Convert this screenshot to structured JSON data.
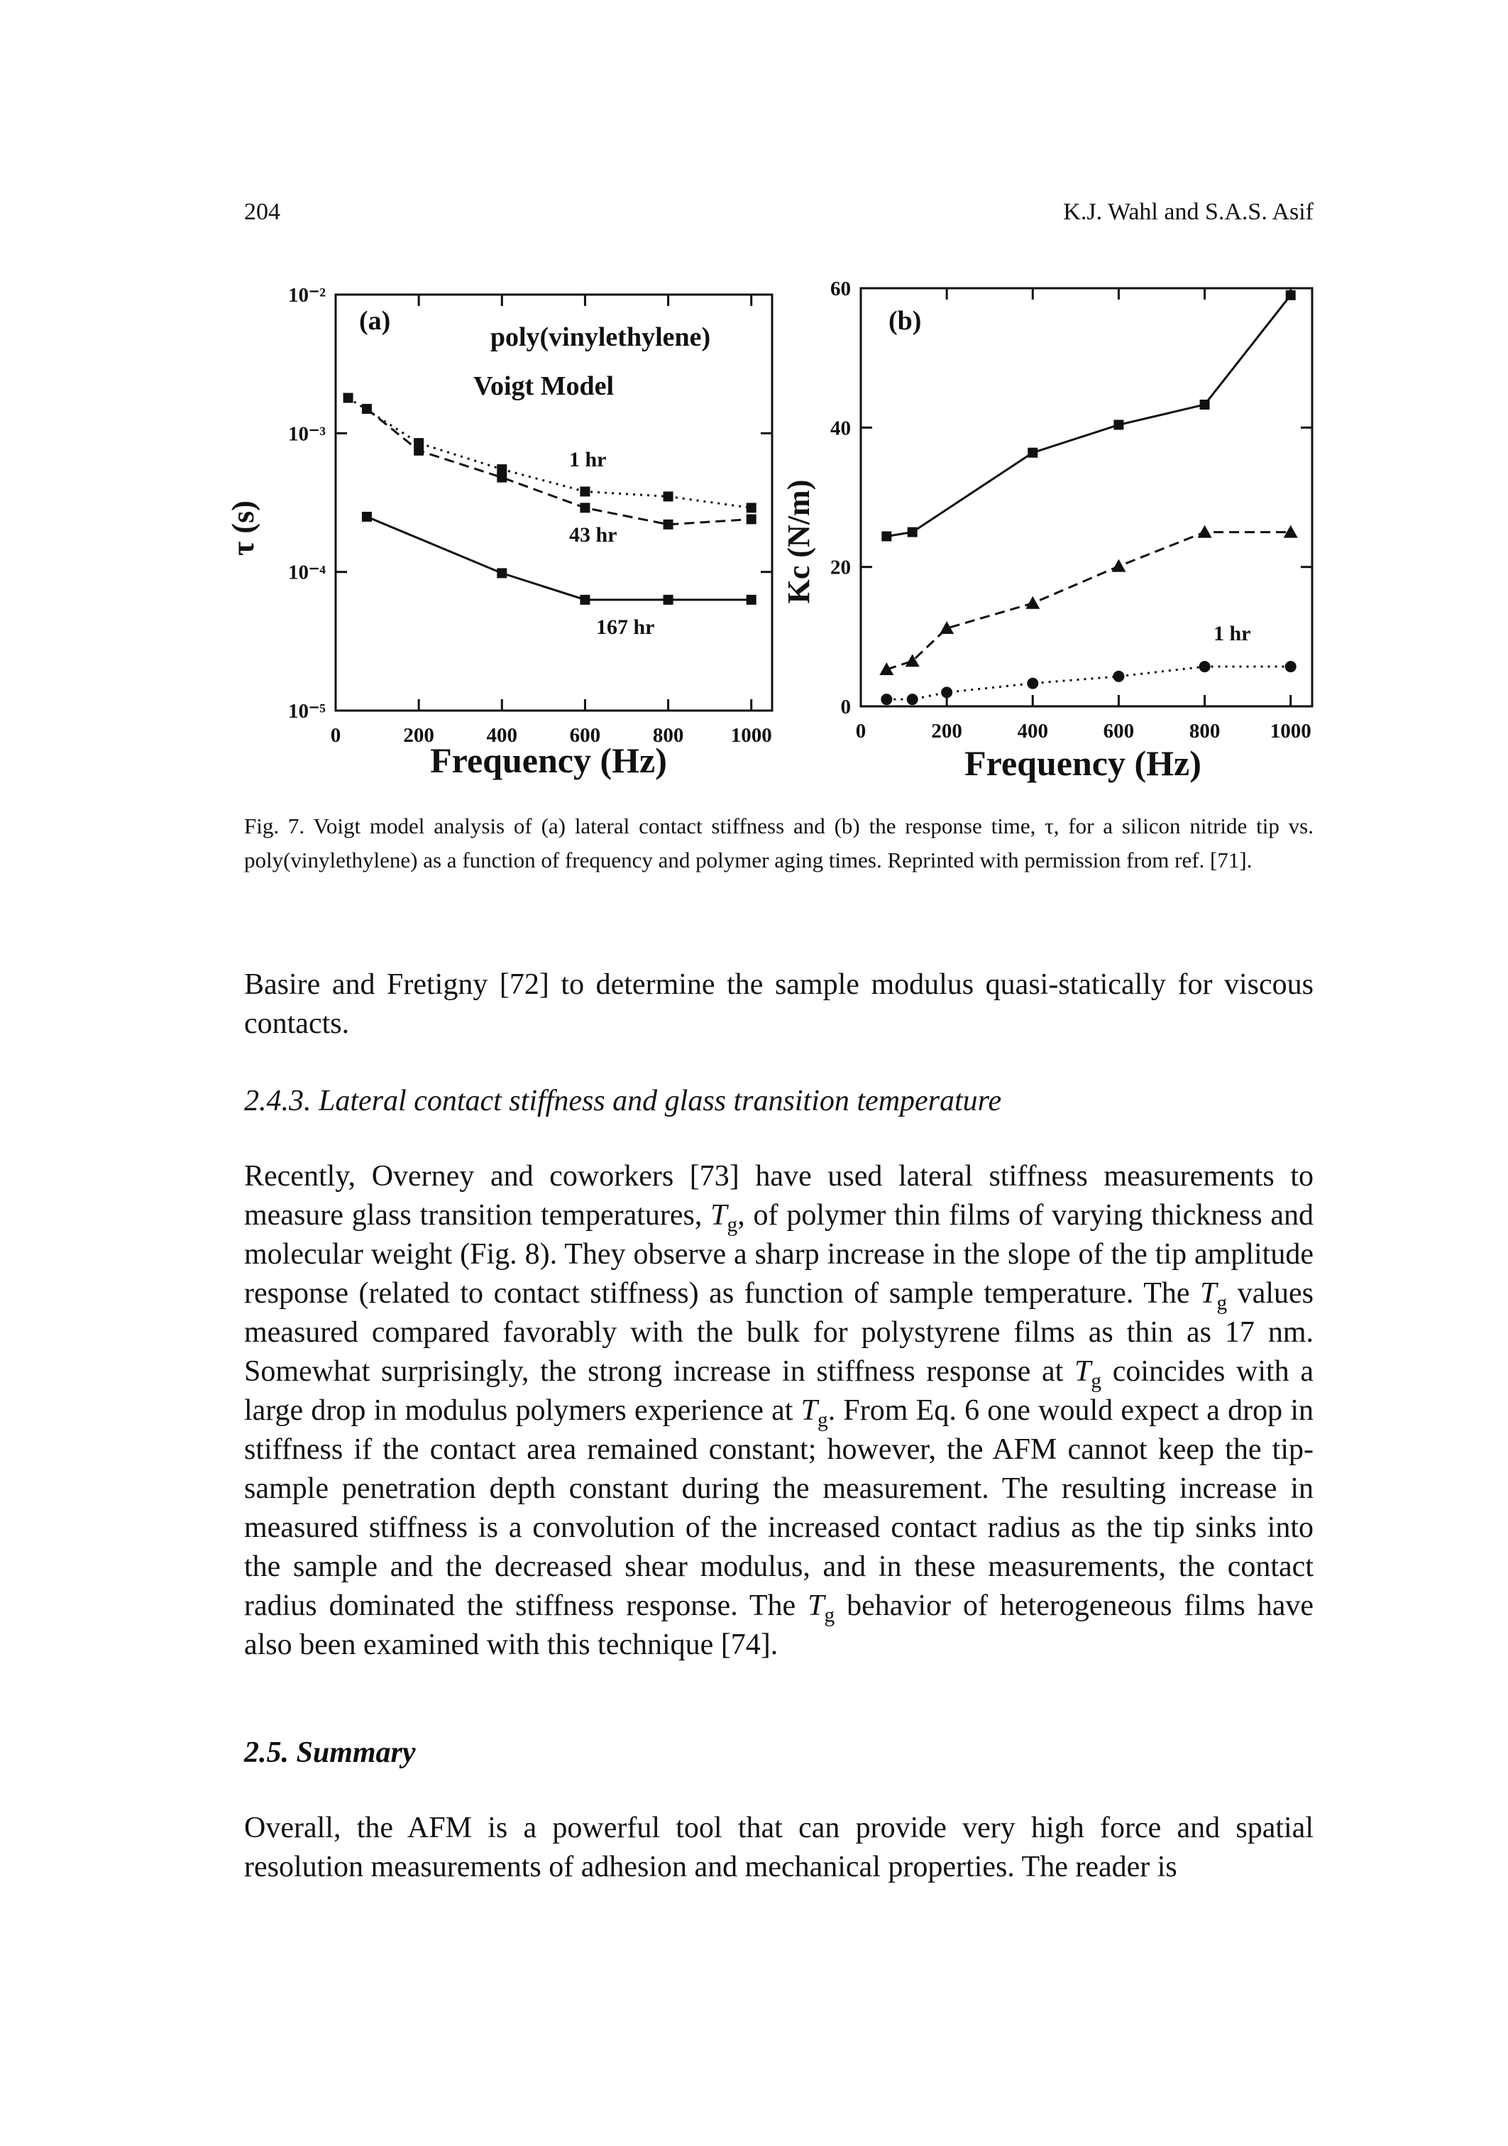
{
  "header": {
    "page": "204",
    "authors": "K.J. Wahl and S.A.S. Asif"
  },
  "chart_data": [
    {
      "type": "line",
      "panel_label": "(a)",
      "annotations": [
        "poly(vinylethylene)",
        "Voigt Model"
      ],
      "xlabel": "Frequency (Hz)",
      "ylabel": "τ (s)",
      "yscale": "log",
      "xlim": [
        0,
        1050
      ],
      "xticks": [
        0,
        200,
        400,
        600,
        800,
        1000
      ],
      "ylim": [
        1e-05,
        0.01
      ],
      "yticks": [
        {
          "value": 1e-05,
          "label": "10⁻⁵"
        },
        {
          "value": 0.0001,
          "label": "10⁻⁴"
        },
        {
          "value": 0.001,
          "label": "10⁻³"
        },
        {
          "value": 0.01,
          "label": "10⁻²"
        }
      ],
      "series": [
        {
          "name": "1 hr",
          "color": "#111111",
          "dash": "dotted",
          "marker": "square",
          "x": [
            30,
            200,
            400,
            600,
            800,
            1000
          ],
          "values": [
            0.0018,
            0.00085,
            0.00055,
            0.00038,
            0.00035,
            0.00029
          ]
        },
        {
          "name": "43 hr",
          "color": "#111111",
          "dash": "dashed",
          "marker": "square",
          "x": [
            75,
            200,
            400,
            600,
            800,
            1000
          ],
          "values": [
            0.0015,
            0.00075,
            0.00048,
            0.00029,
            0.00022,
            0.00024
          ]
        },
        {
          "name": "167 hr",
          "color": "#111111",
          "dash": "solid",
          "marker": "square",
          "x": [
            75,
            400,
            600,
            800,
            1000
          ],
          "values": [
            0.00025,
            9.8e-05,
            6.3e-05,
            6.3e-05,
            6.3e-05
          ]
        }
      ]
    },
    {
      "type": "line",
      "panel_label": "(b)",
      "annotations": [],
      "xlabel": "Frequency (Hz)",
      "ylabel": "Kc (N/m)",
      "xlim": [
        0,
        1050
      ],
      "xticks": [
        0,
        200,
        400,
        600,
        800,
        1000
      ],
      "ylim": [
        0,
        60
      ],
      "yticks": [
        0,
        20,
        40,
        60
      ],
      "series": [
        {
          "color": "#111111",
          "dash": "solid",
          "marker": "square",
          "x": [
            60,
            120,
            400,
            600,
            800,
            1000
          ],
          "values": [
            24.4,
            25,
            36.4,
            40.4,
            43.3,
            59
          ]
        },
        {
          "color": "#111111",
          "dash": "dashed",
          "marker": "triangle",
          "x": [
            60,
            120,
            200,
            400,
            600,
            800,
            1000
          ],
          "values": [
            5.3,
            6.5,
            11.2,
            14.8,
            20.1,
            25,
            25
          ]
        },
        {
          "name": "1 hr",
          "color": "#111111",
          "dash": "dotted",
          "marker": "circle",
          "x": [
            60,
            120,
            200,
            400,
            600,
            800,
            1000
          ],
          "values": [
            1,
            1,
            2,
            3.3,
            4.3,
            5.7,
            5.7
          ]
        }
      ]
    }
  ],
  "caption": "Fig. 7. Voigt model analysis of (a) lateral contact stiffness and (b) the response time, τ, for a silicon nitride tip vs. poly(vinylethylene) as a function of frequency and polymer aging times. Reprinted with permission from ref. [71].",
  "paragraphs": [
    [
      "Basire and Fretigny [72] to determine the sample modulus quasi-statically for viscous contacts."
    ],
    [
      "Recently, Overney and coworkers [73] have used lateral stiffness measurements to measure glass transition temperatures, ",
      {
        "symbol": "T",
        "subscript": "g"
      },
      ", of polymer thin films of varying thickness and molecular weight (Fig. 8). They observe a sharp increase in the slope of the tip amplitude response (related to contact stiffness) as function of sample temperature. The ",
      {
        "symbol": "T",
        "subscript": "g"
      },
      " values measured compared favorably with the bulk for polystyrene films as thin as 17 nm. Somewhat surprisingly, the strong increase in stiffness response at ",
      {
        "symbol": "T",
        "subscript": "g"
      },
      " coincides with a large drop in modulus polymers experience at ",
      {
        "symbol": "T",
        "subscript": "g"
      },
      ". From Eq. 6 one would expect a drop in stiffness if the contact area remained constant; however, the AFM cannot keep the tip-sample penetration depth constant during the measurement. The resulting increase in measured stiffness is a convolution of the increased contact radius as the tip sinks into the sample and the decreased shear modulus, and in these measurements, the contact radius dominated the stiffness response. The ",
      {
        "symbol": "T",
        "subscript": "g"
      },
      " behavior of heterogeneous films have also been examined with this technique [74]."
    ],
    [
      "Overall, the AFM is a powerful tool that can provide very high force and spatial resolution measurements of adhesion and mechanical properties. The reader is"
    ]
  ],
  "headings": [
    "2.4.3. Lateral contact stiffness and glass transition temperature",
    "2.5. Summary"
  ]
}
